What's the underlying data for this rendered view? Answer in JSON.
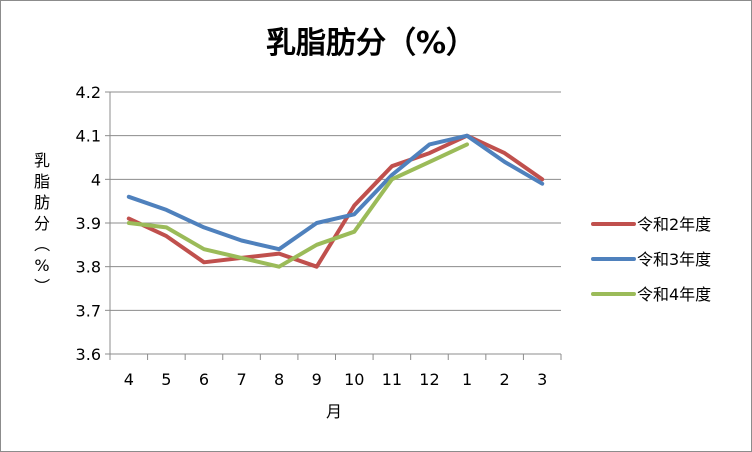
{
  "chart_data": {
    "type": "line",
    "title": "乳脂肪分（%）",
    "xlabel": "月",
    "ylabel": "乳脂肪分（%）",
    "categories": [
      "4",
      "5",
      "6",
      "7",
      "8",
      "9",
      "10",
      "11",
      "12",
      "1",
      "2",
      "3"
    ],
    "ylim": [
      3.6,
      4.2
    ],
    "yticks": [
      "3.6",
      "3.7",
      "3.8",
      "3.9",
      "4",
      "4.1",
      "4.2"
    ],
    "grid": true,
    "legend_position": "right",
    "series": [
      {
        "name": "令和2年度",
        "color": "#c0504d",
        "values": [
          3.91,
          3.87,
          3.81,
          3.82,
          3.83,
          3.8,
          3.94,
          4.03,
          4.06,
          4.1,
          4.06,
          4.0
        ]
      },
      {
        "name": "令和3年度",
        "color": "#4f81bd",
        "values": [
          3.96,
          3.93,
          3.89,
          3.86,
          3.84,
          3.9,
          3.92,
          4.01,
          4.08,
          4.1,
          4.04,
          3.99
        ]
      },
      {
        "name": "令和4年度",
        "color": "#9bbb59",
        "values": [
          3.9,
          3.89,
          3.84,
          3.82,
          3.8,
          3.85,
          3.88,
          4.0,
          4.04,
          4.08,
          null,
          null
        ]
      }
    ]
  }
}
